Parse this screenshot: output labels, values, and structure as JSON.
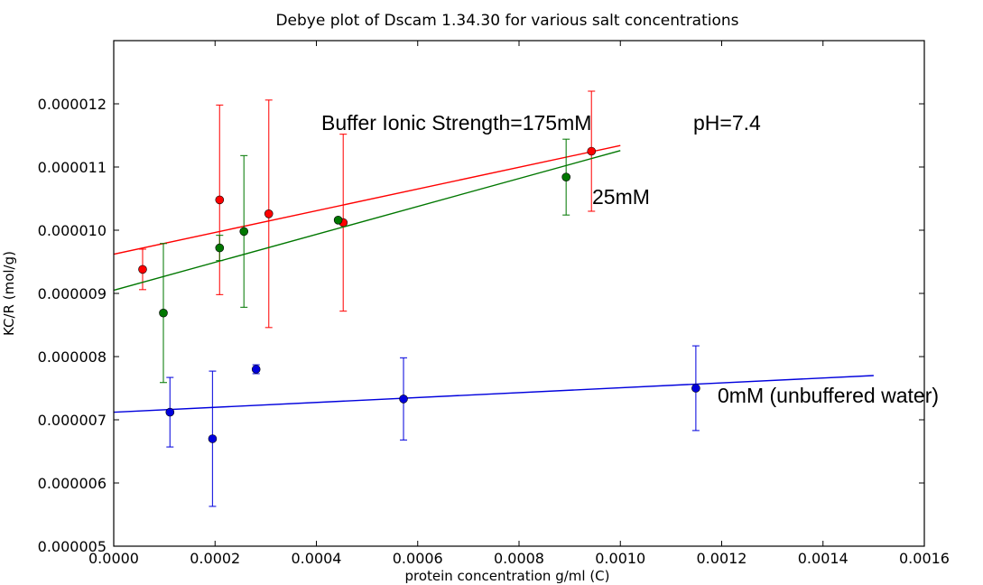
{
  "chart_data": {
    "type": "scatter",
    "title": "Debye plot of Dscam 1.34.30 for various salt concentrations",
    "xlabel": "protein concentration g/ml (C)",
    "ylabel": "KC/R (mol/g)",
    "xlim": [
      0.0,
      0.0016
    ],
    "ylim": [
      5e-06,
      1.3e-05
    ],
    "grid": false,
    "x_ticks": [
      "0.0000",
      "0.0002",
      "0.0004",
      "0.0006",
      "0.0008",
      "0.0010",
      "0.0012",
      "0.0014",
      "0.0016"
    ],
    "x_tick_values": [
      0.0,
      0.0002,
      0.0004,
      0.0006,
      0.0008,
      0.001,
      0.0012,
      0.0014,
      0.0016
    ],
    "y_ticks": [
      "0.000005",
      "0.000006",
      "0.000007",
      "0.000008",
      "0.000009",
      "0.000010",
      "0.000011",
      "0.000012"
    ],
    "y_tick_values": [
      5e-06,
      6e-06,
      7e-06,
      8e-06,
      9e-06,
      1e-05,
      1.1e-05,
      1.2e-05
    ],
    "series": [
      {
        "name": "175mM",
        "color": "#ff0000",
        "points": [
          {
            "x": 5.7e-05,
            "y": 9.38e-06,
            "err": 3.2e-07
          },
          {
            "x": 0.000209,
            "y": 1.048e-05,
            "err": 1.5e-06
          },
          {
            "x": 0.000306,
            "y": 1.026e-05,
            "err": 1.8e-06
          },
          {
            "x": 0.000453,
            "y": 1.012e-05,
            "err": 1.4e-06
          },
          {
            "x": 0.000943,
            "y": 1.125e-05,
            "err": 9.5e-07
          }
        ],
        "fit": {
          "x": [
            0.0,
            0.001
          ],
          "y": [
            9.62e-06,
            1.134e-05
          ]
        }
      },
      {
        "name": "25mM",
        "color": "#007700",
        "points": [
          {
            "x": 9.8e-05,
            "y": 8.69e-06,
            "err": 1.1e-06
          },
          {
            "x": 0.000209,
            "y": 9.72e-06,
            "err": 2e-07
          },
          {
            "x": 0.000257,
            "y": 9.98e-06,
            "err": 1.2e-06
          },
          {
            "x": 0.000443,
            "y": 1.016e-05,
            "err": 3e-08
          },
          {
            "x": 0.000893,
            "y": 1.084e-05,
            "err": 6e-07
          }
        ],
        "fit": {
          "x": [
            0.0,
            0.001
          ],
          "y": [
            9.05e-06,
            1.126e-05
          ]
        }
      },
      {
        "name": "0mM (unbuffered water)",
        "color": "#0000dd",
        "points": [
          {
            "x": 0.000111,
            "y": 7.12e-06,
            "err": 5.5e-07
          },
          {
            "x": 0.000195,
            "y": 6.7e-06,
            "err": 1.07e-06
          },
          {
            "x": 0.000281,
            "y": 7.8e-06,
            "err": 7e-08
          },
          {
            "x": 0.000572,
            "y": 7.33e-06,
            "err": 6.5e-07
          },
          {
            "x": 0.001149,
            "y": 7.5e-06,
            "err": 6.7e-07
          }
        ],
        "fit": {
          "x": [
            0.0,
            0.0015
          ],
          "y": [
            7.12e-06,
            7.7e-06
          ]
        }
      }
    ],
    "annotations": [
      {
        "text": "Buffer Ionic Strength=175mM"
      },
      {
        "text": "pH=7.4"
      },
      {
        "text": "25mM"
      },
      {
        "text": "0mM (unbuffered water)"
      }
    ]
  }
}
